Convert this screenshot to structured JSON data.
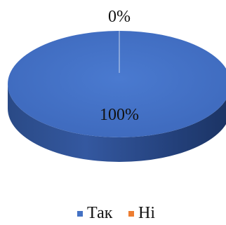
{
  "chart_data": {
    "type": "pie",
    "style": "3d",
    "categories": [
      "Так",
      "Ні"
    ],
    "values": [
      100,
      0
    ],
    "data_labels": [
      "100%",
      "0%"
    ],
    "colors": [
      "#4472C4",
      "#ED7D31"
    ],
    "legend": {
      "placement": "bottom",
      "entries": [
        "Так",
        "Ні"
      ]
    }
  }
}
